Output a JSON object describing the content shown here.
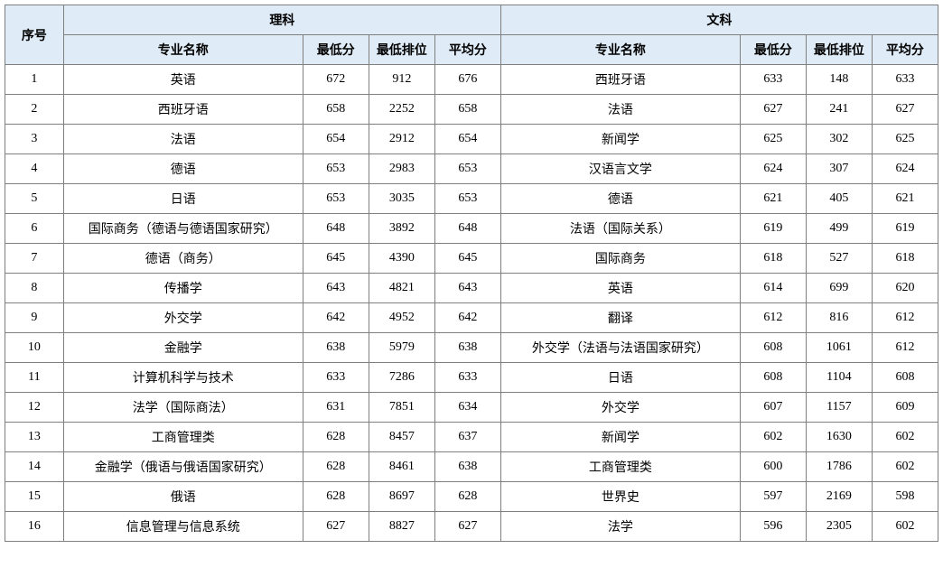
{
  "headers": {
    "seq": "序号",
    "science": "理科",
    "arts": "文科",
    "major": "专业名称",
    "minScore": "最低分",
    "minRank": "最低排位",
    "avgScore": "平均分"
  },
  "styling": {
    "header_bg": "#dfebf6",
    "border_color": "#7f7f7f",
    "text_color": "#000000",
    "font_family": "SimSun",
    "cell_fontsize": 14,
    "header_fontweight": "bold",
    "background_color": "#ffffff"
  },
  "rows": [
    {
      "seq": "1",
      "sci_major": "英语",
      "sci_min": "672",
      "sci_rank": "912",
      "sci_avg": "676",
      "art_major": "西班牙语",
      "art_min": "633",
      "art_rank": "148",
      "art_avg": "633"
    },
    {
      "seq": "2",
      "sci_major": "西班牙语",
      "sci_min": "658",
      "sci_rank": "2252",
      "sci_avg": "658",
      "art_major": "法语",
      "art_min": "627",
      "art_rank": "241",
      "art_avg": "627"
    },
    {
      "seq": "3",
      "sci_major": "法语",
      "sci_min": "654",
      "sci_rank": "2912",
      "sci_avg": "654",
      "art_major": "新闻学",
      "art_min": "625",
      "art_rank": "302",
      "art_avg": "625"
    },
    {
      "seq": "4",
      "sci_major": "德语",
      "sci_min": "653",
      "sci_rank": "2983",
      "sci_avg": "653",
      "art_major": "汉语言文学",
      "art_min": "624",
      "art_rank": "307",
      "art_avg": "624"
    },
    {
      "seq": "5",
      "sci_major": "日语",
      "sci_min": "653",
      "sci_rank": "3035",
      "sci_avg": "653",
      "art_major": "德语",
      "art_min": "621",
      "art_rank": "405",
      "art_avg": "621"
    },
    {
      "seq": "6",
      "sci_major": "国际商务（德语与德语国家研究）",
      "sci_min": "648",
      "sci_rank": "3892",
      "sci_avg": "648",
      "art_major": "法语（国际关系）",
      "art_min": "619",
      "art_rank": "499",
      "art_avg": "619"
    },
    {
      "seq": "7",
      "sci_major": "德语（商务）",
      "sci_min": "645",
      "sci_rank": "4390",
      "sci_avg": "645",
      "art_major": "国际商务",
      "art_min": "618",
      "art_rank": "527",
      "art_avg": "618"
    },
    {
      "seq": "8",
      "sci_major": "传播学",
      "sci_min": "643",
      "sci_rank": "4821",
      "sci_avg": "643",
      "art_major": "英语",
      "art_min": "614",
      "art_rank": "699",
      "art_avg": "620"
    },
    {
      "seq": "9",
      "sci_major": "外交学",
      "sci_min": "642",
      "sci_rank": "4952",
      "sci_avg": "642",
      "art_major": "翻译",
      "art_min": "612",
      "art_rank": "816",
      "art_avg": "612"
    },
    {
      "seq": "10",
      "sci_major": "金融学",
      "sci_min": "638",
      "sci_rank": "5979",
      "sci_avg": "638",
      "art_major": "外交学（法语与法语国家研究）",
      "art_min": "608",
      "art_rank": "1061",
      "art_avg": "612"
    },
    {
      "seq": "11",
      "sci_major": "计算机科学与技术",
      "sci_min": "633",
      "sci_rank": "7286",
      "sci_avg": "633",
      "art_major": "日语",
      "art_min": "608",
      "art_rank": "1104",
      "art_avg": "608"
    },
    {
      "seq": "12",
      "sci_major": "法学（国际商法）",
      "sci_min": "631",
      "sci_rank": "7851",
      "sci_avg": "634",
      "art_major": "外交学",
      "art_min": "607",
      "art_rank": "1157",
      "art_avg": "609"
    },
    {
      "seq": "13",
      "sci_major": "工商管理类",
      "sci_min": "628",
      "sci_rank": "8457",
      "sci_avg": "637",
      "art_major": "新闻学",
      "art_min": "602",
      "art_rank": "1630",
      "art_avg": "602"
    },
    {
      "seq": "14",
      "sci_major": "金融学（俄语与俄语国家研究）",
      "sci_min": "628",
      "sci_rank": "8461",
      "sci_avg": "638",
      "art_major": "工商管理类",
      "art_min": "600",
      "art_rank": "1786",
      "art_avg": "602"
    },
    {
      "seq": "15",
      "sci_major": "俄语",
      "sci_min": "628",
      "sci_rank": "8697",
      "sci_avg": "628",
      "art_major": "世界史",
      "art_min": "597",
      "art_rank": "2169",
      "art_avg": "598"
    },
    {
      "seq": "16",
      "sci_major": "信息管理与信息系统",
      "sci_min": "627",
      "sci_rank": "8827",
      "sci_avg": "627",
      "art_major": "法学",
      "art_min": "596",
      "art_rank": "2305",
      "art_avg": "602"
    }
  ]
}
